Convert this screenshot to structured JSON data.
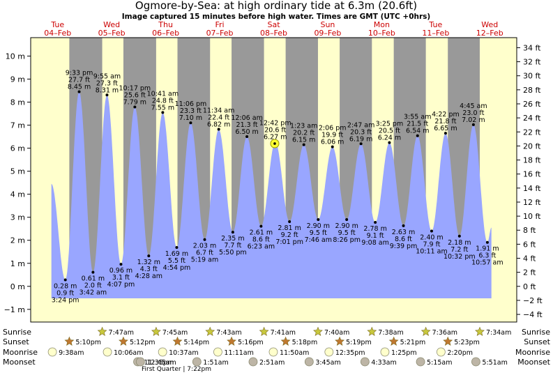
{
  "chart_data": {
    "type": "area",
    "title": "Ogmore-by-Sea: at high  ordinary tide at 6.3m (20.6ft)",
    "subtitle": "Image captured 15 minutes before high water. Times are GMT (UTC +0hrs)",
    "y_left_ticks": [
      "10 m",
      "9 m",
      "8 m",
      "7 m",
      "6 m",
      "5 m",
      "4 m",
      "3 m",
      "2 m",
      "1 m",
      "0 m",
      "−1 m"
    ],
    "y_right_ticks": [
      "34 ft",
      "32 ft",
      "30 ft",
      "28 ft",
      "26 ft",
      "24 ft",
      "22 ft",
      "20 ft",
      "18 ft",
      "16 ft",
      "14 ft",
      "12 ft",
      "10 ft",
      "8 ft",
      "6 ft",
      "4 ft",
      "2 ft",
      "0 ft",
      "−2 ft",
      "−4 ft"
    ],
    "days": [
      {
        "dow": "Tue",
        "date": "04–Feb"
      },
      {
        "dow": "Wed",
        "date": "05–Feb"
      },
      {
        "dow": "Thu",
        "date": "06–Feb"
      },
      {
        "dow": "Fri",
        "date": "07–Feb"
      },
      {
        "dow": "Sat",
        "date": "08–Feb"
      },
      {
        "dow": "Sun",
        "date": "09–Feb"
      },
      {
        "dow": "Mon",
        "date": "10–Feb"
      },
      {
        "dow": "Tue",
        "date": "11–Feb"
      },
      {
        "dow": "Wed",
        "date": "12–Feb"
      }
    ],
    "tides": [
      {
        "type": "low",
        "time": "3:24 pm",
        "m": "0.28 m",
        "ft": "0.9 ft",
        "x": "2025-02-04 15:24",
        "value": 0.28
      },
      {
        "type": "high",
        "time": "9:33 pm",
        "m": "8.45 m",
        "ft": "27.7 ft",
        "x": "2025-02-04 21:33",
        "value": 8.45
      },
      {
        "type": "low",
        "time": "3:42 am",
        "m": "0.61 m",
        "ft": "2.0 ft",
        "x": "2025-02-05 03:42",
        "value": 0.61
      },
      {
        "type": "high",
        "time": "9:55 am",
        "m": "8.31 m",
        "ft": "27.3 ft",
        "x": "2025-02-05 09:55",
        "value": 8.31
      },
      {
        "type": "low",
        "time": "4:07 pm",
        "m": "0.96 m",
        "ft": "3.1 ft",
        "x": "2025-02-05 16:07",
        "value": 0.96
      },
      {
        "type": "high",
        "time": "10:17 pm",
        "m": "7.79 m",
        "ft": "25.6 ft",
        "x": "2025-02-05 22:17",
        "value": 7.79
      },
      {
        "type": "low",
        "time": "4:28 am",
        "m": "1.32 m",
        "ft": "4.3 ft",
        "x": "2025-02-06 04:28",
        "value": 1.32
      },
      {
        "type": "high",
        "time": "10:41 am",
        "m": "7.55 m",
        "ft": "24.8 ft",
        "x": "2025-02-06 10:41",
        "value": 7.55
      },
      {
        "type": "low",
        "time": "4:54 pm",
        "m": "1.69 m",
        "ft": "5.5 ft",
        "x": "2025-02-06 16:54",
        "value": 1.69
      },
      {
        "type": "high",
        "time": "11:06 pm",
        "m": "7.10 m",
        "ft": "23.3 ft",
        "x": "2025-02-06 23:06",
        "value": 7.1
      },
      {
        "type": "low",
        "time": "5:19 am",
        "m": "2.03 m",
        "ft": "6.7 ft",
        "x": "2025-02-07 05:19",
        "value": 2.03
      },
      {
        "type": "high",
        "time": "11:34 am",
        "m": "6.82 m",
        "ft": "22.4 ft",
        "x": "2025-02-07 11:34",
        "value": 6.82
      },
      {
        "type": "low",
        "time": "5:50 pm",
        "m": "2.35 m",
        "ft": "7.7 ft",
        "x": "2025-02-07 17:50",
        "value": 2.35
      },
      {
        "type": "high",
        "time": "12:06 am",
        "m": "6.50 m",
        "ft": "21.3 ft",
        "x": "2025-02-08 00:06",
        "value": 6.5
      },
      {
        "type": "low",
        "time": "6:23 am",
        "m": "2.61 m",
        "ft": "8.6 ft",
        "x": "2025-02-08 06:23",
        "value": 2.61
      },
      {
        "type": "high",
        "time": "12:42 pm",
        "m": "6.27 m",
        "ft": "20.6 ft",
        "x": "2025-02-08 12:42",
        "value": 6.27
      },
      {
        "type": "low",
        "time": "7:01 pm",
        "m": "2.81 m",
        "ft": "9.2 ft",
        "x": "2025-02-08 19:01",
        "value": 2.81
      },
      {
        "type": "high",
        "time": "1:23 am",
        "m": "6.15 m",
        "ft": "20.2 ft",
        "x": "2025-02-09 01:23",
        "value": 6.15
      },
      {
        "type": "low",
        "time": "7:46 am",
        "m": "2.90 m",
        "ft": "9.5 ft",
        "x": "2025-02-09 07:46",
        "value": 2.9
      },
      {
        "type": "high",
        "time": "2:06 pm",
        "m": "6.06 m",
        "ft": "19.9 ft",
        "x": "2025-02-09 14:06",
        "value": 6.06
      },
      {
        "type": "low",
        "time": "8:26 pm",
        "m": "2.90 m",
        "ft": "9.5 ft",
        "x": "2025-02-09 20:26",
        "value": 2.9
      },
      {
        "type": "high",
        "time": "2:47 am",
        "m": "6.19 m",
        "ft": "20.3 ft",
        "x": "2025-02-10 02:47",
        "value": 6.19
      },
      {
        "type": "low",
        "time": "9:08 am",
        "m": "2.78 m",
        "ft": "9.1 ft",
        "x": "2025-02-10 09:08",
        "value": 2.78
      },
      {
        "type": "high",
        "time": "3:25 pm",
        "m": "6.24 m",
        "ft": "20.5 ft",
        "x": "2025-02-10 15:25",
        "value": 6.24
      },
      {
        "type": "low",
        "time": "9:39 pm",
        "m": "2.63 m",
        "ft": "8.6 ft",
        "x": "2025-02-10 21:39",
        "value": 2.63
      },
      {
        "type": "high",
        "time": "3:55 am",
        "m": "6.54 m",
        "ft": "21.5 ft",
        "x": "2025-02-11 03:55",
        "value": 6.54
      },
      {
        "type": "low",
        "time": "10:11 am",
        "m": "2.40 m",
        "ft": "7.9 ft",
        "x": "2025-02-11 10:11",
        "value": 2.4
      },
      {
        "type": "high",
        "time": "4:22 pm",
        "m": "6.65 m",
        "ft": "21.8 ft",
        "x": "2025-02-11 16:22",
        "value": 6.65
      },
      {
        "type": "low",
        "time": "10:32 pm",
        "m": "2.18 m",
        "ft": "7.2 ft",
        "x": "2025-02-11 22:32",
        "value": 2.18
      },
      {
        "type": "high",
        "time": "4:45 am",
        "m": "7.02 m",
        "ft": "23.0 ft",
        "x": "2025-02-12 04:45",
        "value": 7.02
      },
      {
        "type": "low",
        "time": "10:57 am",
        "m": "1.91 m",
        "ft": "6.3 ft",
        "x": "2025-02-12 10:57",
        "value": 1.91
      }
    ],
    "ylim": [
      -1.55,
      10.8
    ],
    "xlim": [
      "2025-02-04 00:00",
      "2025-02-12 24:00"
    ],
    "current_marker": {
      "x": "2025-02-08 12:27",
      "value": 6.2
    },
    "colors": {
      "day": "#FFFFCC",
      "night": "#999999",
      "tide": "#99A6FF",
      "title": "#000000",
      "date": "#CC0000"
    }
  },
  "astro": {
    "row_labels": {
      "sunrise": "Sunrise",
      "sunset": "Sunset",
      "moonrise": "Moonrise",
      "moonset": "Moonset"
    },
    "sunrise": [
      {
        "date": "2025-02-05",
        "time": "7:47am"
      },
      {
        "date": "2025-02-06",
        "time": "7:45am"
      },
      {
        "date": "2025-02-07",
        "time": "7:43am"
      },
      {
        "date": "2025-02-08",
        "time": "7:41am"
      },
      {
        "date": "2025-02-09",
        "time": "7:40am"
      },
      {
        "date": "2025-02-10",
        "time": "7:38am"
      },
      {
        "date": "2025-02-11",
        "time": "7:36am"
      },
      {
        "date": "2025-02-12",
        "time": "7:34am"
      }
    ],
    "sunset": [
      {
        "date": "2025-02-04",
        "time": "5:10pm"
      },
      {
        "date": "2025-02-05",
        "time": "5:12pm"
      },
      {
        "date": "2025-02-06",
        "time": "5:14pm"
      },
      {
        "date": "2025-02-07",
        "time": "5:16pm"
      },
      {
        "date": "2025-02-08",
        "time": "5:18pm"
      },
      {
        "date": "2025-02-09",
        "time": "5:19pm"
      },
      {
        "date": "2025-02-10",
        "time": "5:21pm"
      },
      {
        "date": "2025-02-11",
        "time": "5:23pm"
      }
    ],
    "moonrise": [
      {
        "date": "2025-02-04",
        "time": "9:38am"
      },
      {
        "date": "2025-02-05",
        "time": "10:06am"
      },
      {
        "date": "2025-02-06",
        "time": "10:37am"
      },
      {
        "date": "2025-02-07",
        "time": "11:11am"
      },
      {
        "date": "2025-02-08",
        "time": "11:50am"
      },
      {
        "date": "2025-02-09",
        "time": "12:35pm"
      },
      {
        "date": "2025-02-10",
        "time": "1:25pm"
      },
      {
        "date": "2025-02-11",
        "time": "2:20pm"
      }
    ],
    "moonset": [
      {
        "date": "2025-02-05",
        "time": "11:35pm"
      },
      {
        "date": "2025-02-06",
        "time": "12:45am"
      },
      {
        "date": "2025-02-07",
        "time": "1:51am"
      },
      {
        "date": "2025-02-08",
        "time": "2:51am"
      },
      {
        "date": "2025-02-09",
        "time": "3:45am"
      },
      {
        "date": "2025-02-10",
        "time": "4:33am"
      },
      {
        "date": "2025-02-11",
        "time": "5:15am"
      },
      {
        "date": "2025-02-12",
        "time": "5:51am"
      }
    ],
    "phase_note": "First Quarter | 7:22pm"
  }
}
